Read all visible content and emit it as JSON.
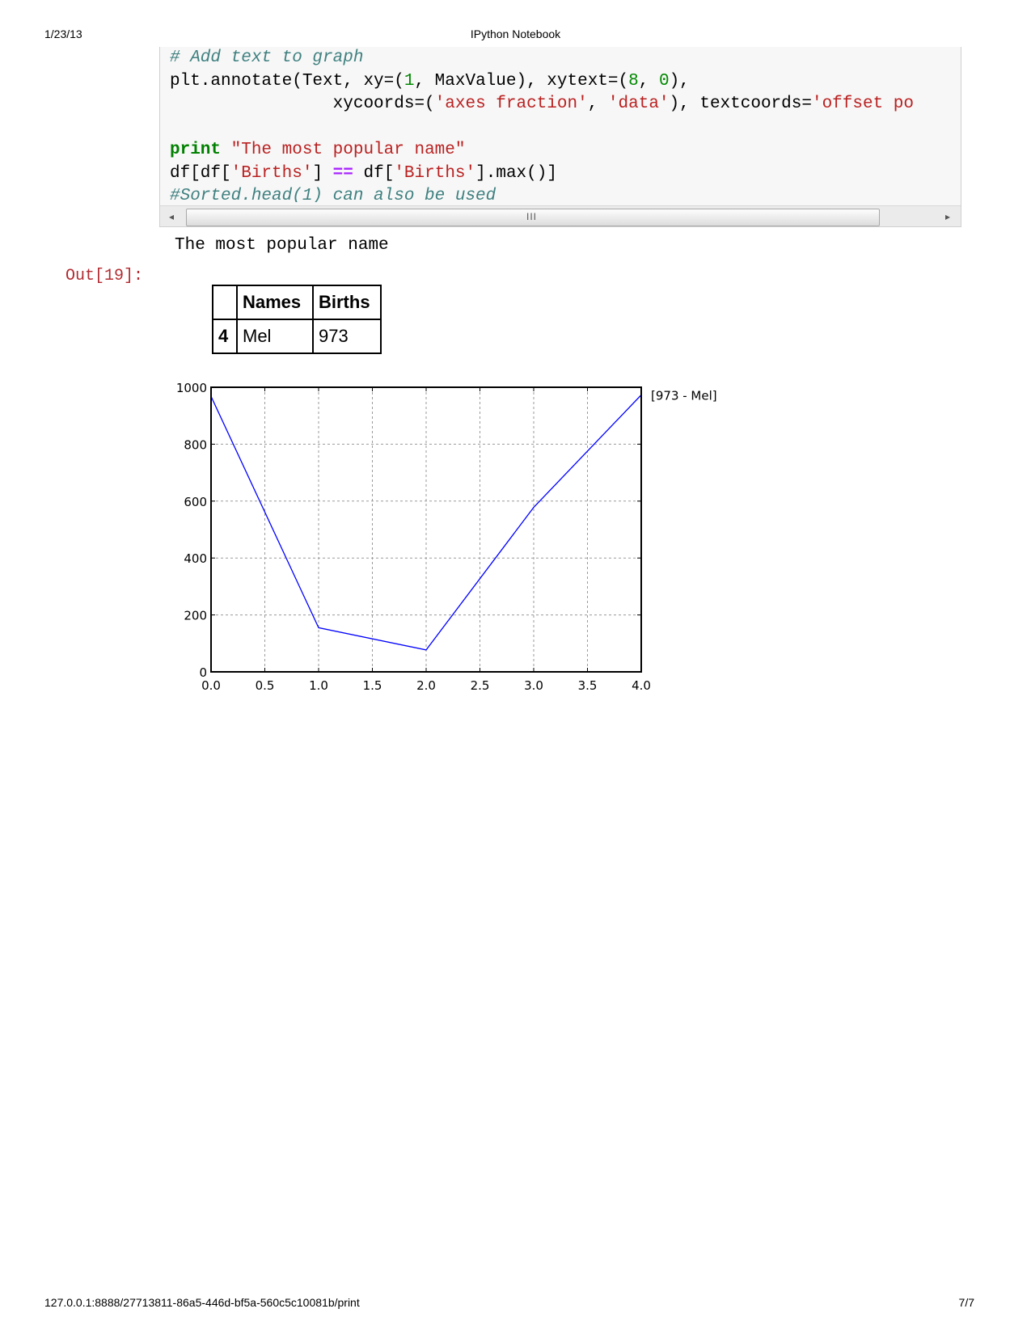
{
  "header": {
    "date": "1/23/13",
    "title": "IPython Notebook"
  },
  "footer": {
    "url": "127.0.0.1:8888/27713811-86a5-446d-bf5a-560c5c10081b/print",
    "page": "7/7"
  },
  "code_lines": [
    [
      {
        "t": "# Add text to graph",
        "c": "c-com"
      }
    ],
    [
      {
        "t": "plt.annotate(Text, xy=(",
        "c": "c-plain"
      },
      {
        "t": "1",
        "c": "c-num"
      },
      {
        "t": ", MaxValue), xytext=(",
        "c": "c-plain"
      },
      {
        "t": "8",
        "c": "c-num"
      },
      {
        "t": ", ",
        "c": "c-plain"
      },
      {
        "t": "0",
        "c": "c-num"
      },
      {
        "t": "),",
        "c": "c-plain"
      }
    ],
    [
      {
        "t": "                xycoords=(",
        "c": "c-plain"
      },
      {
        "t": "'axes fraction'",
        "c": "c-str"
      },
      {
        "t": ", ",
        "c": "c-plain"
      },
      {
        "t": "'data'",
        "c": "c-str"
      },
      {
        "t": "), textcoords=",
        "c": "c-plain"
      },
      {
        "t": "'offset po",
        "c": "c-str"
      }
    ],
    [
      {
        "t": "",
        "c": "c-plain"
      }
    ],
    [
      {
        "t": "print",
        "c": "c-kw"
      },
      {
        "t": " ",
        "c": "c-plain"
      },
      {
        "t": "\"The most popular name\"",
        "c": "c-str"
      }
    ],
    [
      {
        "t": "df[df[",
        "c": "c-plain"
      },
      {
        "t": "'Births'",
        "c": "c-str"
      },
      {
        "t": "] ",
        "c": "c-plain"
      },
      {
        "t": "==",
        "c": "c-op"
      },
      {
        "t": " df[",
        "c": "c-plain"
      },
      {
        "t": "'Births'",
        "c": "c-str"
      },
      {
        "t": "].max()]",
        "c": "c-plain"
      }
    ],
    [
      {
        "t": "#Sorted.head(1) can also be used",
        "c": "c-com"
      }
    ]
  ],
  "scrollbar": {
    "left_arrow": "◂",
    "right_arrow": "▸",
    "grip": "III"
  },
  "stdout": "The most popular name",
  "out_prompt": "Out[19]:",
  "table": {
    "columns": [
      "",
      "Names",
      "Births"
    ],
    "rows": [
      [
        "4",
        "Mel",
        "973"
      ]
    ]
  },
  "chart_data": {
    "type": "line",
    "x": [
      0,
      1,
      2,
      3,
      4
    ],
    "series": [
      {
        "values": [
          968,
          155,
          77,
          578,
          973
        ],
        "color": "#0000ff"
      }
    ],
    "xlim": [
      0,
      4
    ],
    "ylim": [
      0,
      1000
    ],
    "xticks": [
      0,
      0.5,
      1,
      1.5,
      2,
      2.5,
      3,
      3.5,
      4
    ],
    "xtick_labels": [
      "0.0",
      "0.5",
      "1.0",
      "1.5",
      "2.0",
      "2.5",
      "3.0",
      "3.5",
      "4.0"
    ],
    "yticks": [
      0,
      200,
      400,
      600,
      800,
      1000
    ],
    "ytick_labels": [
      "0",
      "200",
      "400",
      "600",
      "800",
      "1000"
    ],
    "grid": true,
    "annotation": "[973 - Mel]",
    "title": "",
    "xlabel": "",
    "ylabel": ""
  }
}
